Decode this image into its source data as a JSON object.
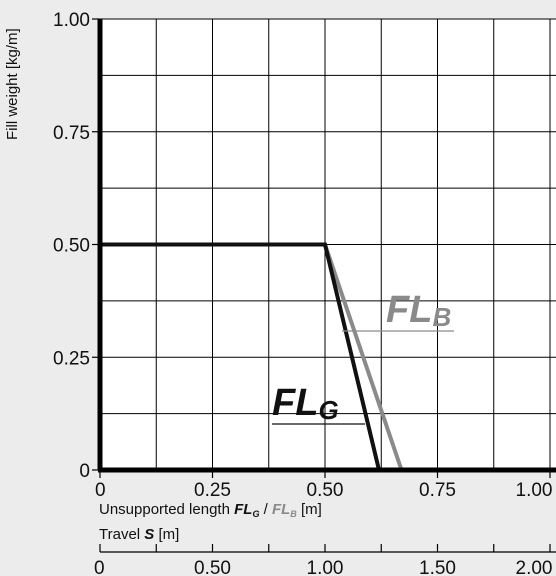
{
  "chart_data": {
    "type": "line",
    "ylabel": "Fill weight [kg/m]",
    "xlabel_prefix": "Unsupported length ",
    "xlabel_fg": "FL",
    "xlabel_fg_sub": "G",
    "xlabel_sep": " / ",
    "xlabel_fb": "FL",
    "xlabel_fb_sub": "B",
    "xlabel_unit": " [m]",
    "x2label_prefix": "Travel ",
    "x2label_var": "S",
    "x2label_unit": " [m]",
    "xlim": [
      0,
      1.0
    ],
    "ylim": [
      0,
      1.0
    ],
    "x_ticks": [
      0,
      0.25,
      0.5,
      0.75,
      1.0
    ],
    "x_tick_labels": [
      "0",
      "0.25",
      "0.50",
      "0.75",
      "1.00"
    ],
    "y_ticks": [
      0,
      0.25,
      0.5,
      0.75,
      1.0
    ],
    "y_tick_labels": [
      "0",
      "0.25",
      "0.50",
      "0.75",
      "1.00"
    ],
    "x2_tick_labels": [
      "0",
      "0.50",
      "1.00",
      "1.50",
      "2.00"
    ],
    "x2_ticks": [
      0,
      0.5,
      1.0,
      1.5,
      2.0
    ],
    "x2lim": [
      0,
      2.0
    ],
    "series": [
      {
        "name": "FL",
        "sub": "G",
        "color": "#111111",
        "x": [
          0,
          0.5,
          0.62
        ],
        "y": [
          0.5,
          0.5,
          0
        ]
      },
      {
        "name": "FL",
        "sub": "B",
        "color": "#8a8a8a",
        "x": [
          0,
          0.5,
          0.67
        ],
        "y": [
          0.5,
          0.5,
          0
        ]
      }
    ],
    "grid": true,
    "colors": {
      "axis": "#000000",
      "grid": "#000000",
      "plot_bg": "#ffffff",
      "page_bg": "#ececec"
    }
  }
}
